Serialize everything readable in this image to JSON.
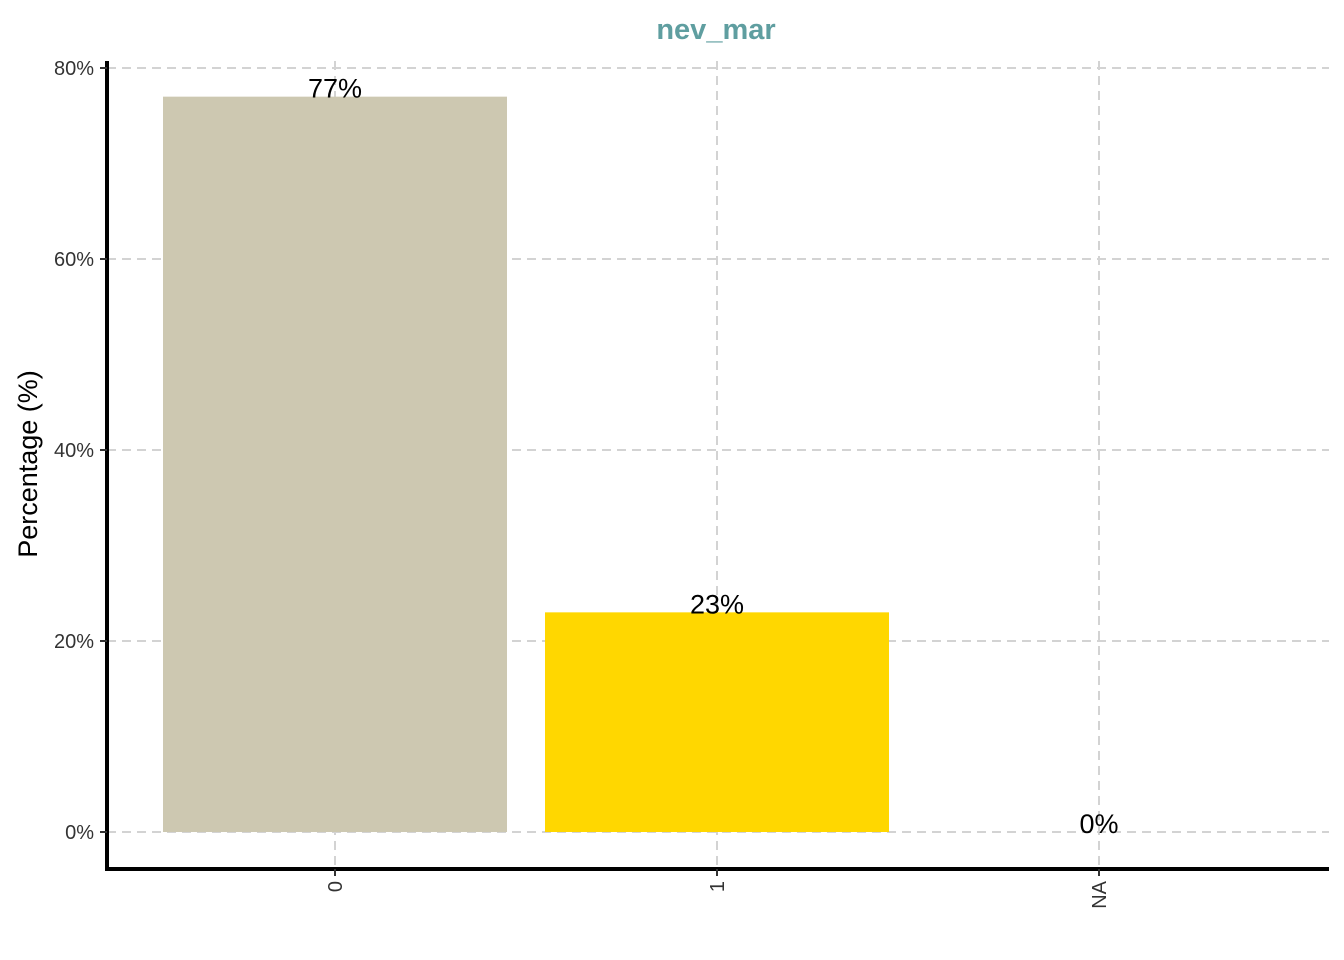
{
  "chart_data": {
    "type": "bar",
    "title": "nev_mar",
    "xlabel": "",
    "ylabel": "Percentage (%)",
    "categories": [
      "0",
      "1",
      "NA"
    ],
    "values": [
      77,
      23,
      0
    ],
    "data_labels": [
      "77%",
      "23%",
      "0%"
    ],
    "bar_colors": [
      "#cdc8b1",
      "#ffd700",
      "#ffffff"
    ],
    "ylim": [
      0,
      80
    ],
    "yticks": [
      0,
      20,
      40,
      60,
      80
    ],
    "ytick_labels": [
      "0%",
      "20%",
      "40%",
      "60%",
      "80%"
    ],
    "grid": true,
    "legend": "none",
    "colors": {
      "title": "#5f9ea0",
      "grid": "#d3d3d3",
      "axis": "#000000"
    }
  }
}
